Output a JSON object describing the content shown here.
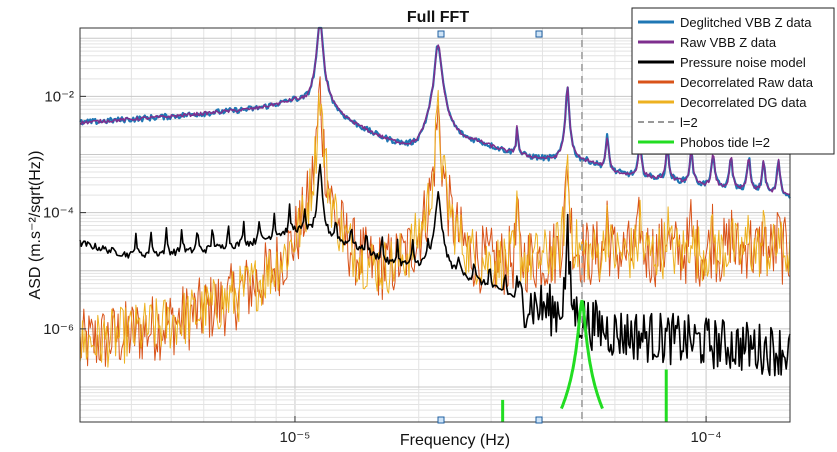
{
  "chart_data": {
    "type": "line",
    "title": "Full FFT",
    "xlabel": "Frequency (Hz)",
    "ylabel": "ASD (m.s⁻²/sqrt(Hz))",
    "xscale": "log",
    "yscale": "log",
    "xlim": [
      3e-06,
      0.00016
    ],
    "ylim": [
      2.5e-08,
      0.15
    ],
    "grid": true,
    "legend_position": "top-right",
    "xticks": [
      {
        "value": 1e-05,
        "label": "10⁻⁵"
      },
      {
        "value": 0.0001,
        "label": "10⁻⁴"
      }
    ],
    "yticks": [
      {
        "value": 1e-06,
        "label": "10⁻⁶"
      },
      {
        "value": 0.0001,
        "label": "10⁻⁴"
      },
      {
        "value": 0.01,
        "label": "10⁻²"
      }
    ],
    "baselines": [
      {
        "x": [
          3e-06,
          5e-06,
          8e-06,
          1e-05,
          1.4e-05,
          1.8e-05,
          2e-05,
          2.3e-05,
          2.8e-05,
          3.5e-05,
          3.9e-05,
          4.5e-05,
          5.2e-05,
          6e-05,
          8e-05,
          0.00011,
          0.00016
        ],
        "values": [
          0.0035,
          0.0045,
          0.006,
          0.008,
          0.0028,
          0.0012,
          0.0007,
          0.0014,
          0.0014,
          0.0009,
          0.0008,
          0.0007,
          0.0007,
          0.00045,
          0.00035,
          0.00025,
          0.00018
        ]
      },
      {
        "x": [
          3e-06,
          4e-06,
          6e-06,
          8e-06,
          1e-05,
          1.4e-05,
          1.7e-05,
          2.1e-05,
          2.8e-05,
          3.5e-05,
          4.5e-05,
          6e-05,
          0.00016
        ],
        "values": [
          3e-05,
          1.8e-05,
          2.2e-05,
          3e-05,
          5e-05,
          2.5e-05,
          1.3e-05,
          1.1e-05,
          6e-06,
          3e-06,
          1.6e-06,
          8e-07,
          4e-07
        ]
      },
      {
        "x": [
          3e-06,
          5e-06,
          8e-06,
          1.15e-05,
          1.6e-05,
          2.2e-05,
          2.8e-05,
          3.5e-05,
          4.5e-05,
          6e-05,
          8e-05,
          0.00011,
          0.00016
        ],
        "values": [
          4e-08,
          9e-08,
          3e-07,
          8e-07,
          1.5e-06,
          4e-06,
          7e-06,
          1.2e-05,
          1.6e-05,
          1.8e-05,
          2e-05,
          2e-05,
          2e-05
        ]
      }
    ],
    "peaks": [
      {
        "x": 1.15e-05,
        "height": 0.22,
        "width": 0.0045
      },
      {
        "x": 2.23e-05,
        "height": 0.08,
        "width": 0.006
      },
      {
        "x": 3.47e-05,
        "height": 0.0022,
        "width": 0.002
      },
      {
        "x": 4.6e-05,
        "height": 0.015,
        "width": 0.003
      },
      {
        "x": 5.75e-05,
        "height": 0.0015,
        "width": 0.003
      },
      {
        "x": 6.9e-05,
        "height": 0.0012,
        "width": 0.003
      },
      {
        "x": 8.05e-05,
        "height": 0.001,
        "width": 0.003
      },
      {
        "x": 9.2e-05,
        "height": 0.0009,
        "width": 0.003
      },
      {
        "x": 0.000104,
        "height": 0.0008,
        "width": 0.003
      },
      {
        "x": 0.000115,
        "height": 0.0007,
        "width": 0.003
      },
      {
        "x": 0.000127,
        "height": 0.0007,
        "width": 0.003
      },
      {
        "x": 0.000138,
        "height": 0.0006,
        "width": 0.003
      },
      {
        "x": 0.00015,
        "height": 0.0006,
        "width": 0.003
      }
    ],
    "vlines": [
      {
        "x": 4.99e-05,
        "series": "l=2"
      }
    ],
    "phobos_tide": {
      "x": [
        3.2e-05,
        4.99e-05,
        8e-05
      ],
      "values": [
        6e-08,
        3e-06,
        2e-07
      ]
    },
    "series": [
      {
        "name": "Deglitched VBB Z data",
        "color": "#1f77b4",
        "style": "solid"
      },
      {
        "name": "Raw VBB Z data",
        "color": "#7e2f8e",
        "style": "solid"
      },
      {
        "name": "Pressure noise model",
        "color": "#000000",
        "style": "solid"
      },
      {
        "name": "Decorrelated Raw data",
        "color": "#d95319",
        "style": "solid"
      },
      {
        "name": "Decorrelated DG data",
        "color": "#edb120",
        "style": "solid"
      },
      {
        "name": "l=2",
        "color": "#999999",
        "style": "dashed"
      },
      {
        "name": "Phobos tide l=2",
        "color": "#22dd22",
        "style": "solid"
      }
    ]
  }
}
